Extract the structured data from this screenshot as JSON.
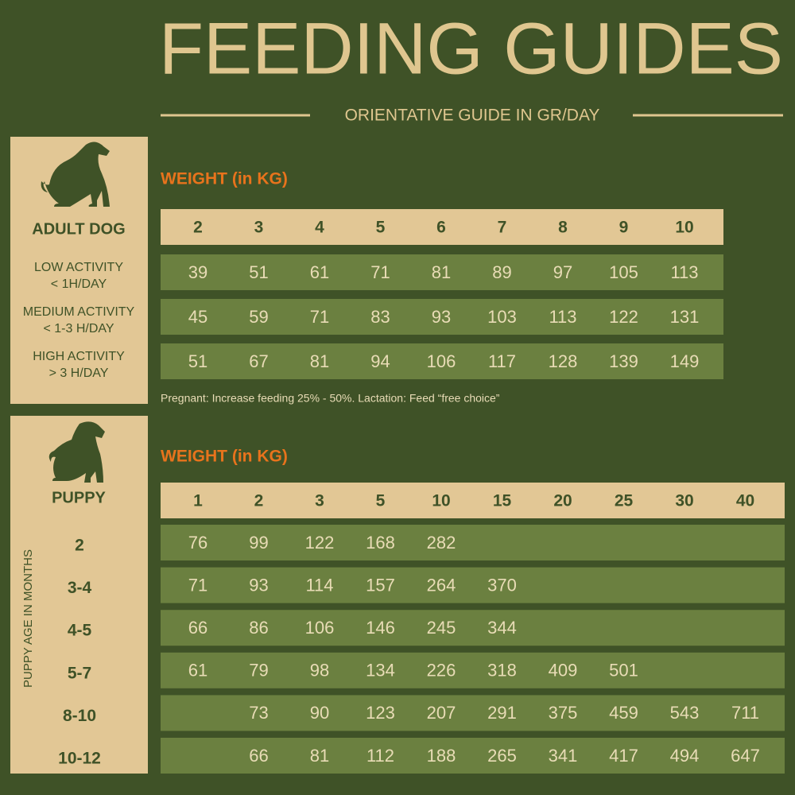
{
  "header": {
    "title": "FEEDING GUIDES",
    "subtitle": "ORIENTATIVE GUIDE IN GR/DAY"
  },
  "adult": {
    "label": "ADULT DOG",
    "weight_heading": "WEIGHT (in KG)",
    "weights": [
      2,
      3,
      4,
      5,
      6,
      7,
      8,
      9,
      10
    ],
    "rows": [
      {
        "label": [
          "LOW ACTIVITY",
          "< 1H/DAY"
        ],
        "values": [
          39,
          51,
          61,
          71,
          81,
          89,
          97,
          105,
          113
        ]
      },
      {
        "label": [
          "MEDIUM ACTIVITY",
          "< 1-3 H/DAY"
        ],
        "values": [
          45,
          59,
          71,
          83,
          93,
          103,
          113,
          122,
          131
        ]
      },
      {
        "label": [
          "HIGH ACTIVITY",
          "> 3 H/DAY"
        ],
        "values": [
          51,
          67,
          81,
          94,
          106,
          117,
          128,
          139,
          149
        ]
      }
    ],
    "note": "Pregnant: Increase feeding 25% - 50%. Lactation: Feed “free choice”"
  },
  "puppy": {
    "label": "PUPPY",
    "weight_heading": "WEIGHT (in KG)",
    "age_axis": "PUPPY AGE IN MONTHS",
    "weights": [
      1,
      2,
      3,
      5,
      10,
      15,
      20,
      25,
      30,
      40
    ],
    "rows": [
      {
        "label": "2",
        "values": [
          76,
          99,
          122,
          168,
          282,
          null,
          null,
          null,
          null,
          null
        ]
      },
      {
        "label": "3-4",
        "values": [
          71,
          93,
          114,
          157,
          264,
          370,
          null,
          null,
          null,
          null
        ]
      },
      {
        "label": "4-5",
        "values": [
          66,
          86,
          106,
          146,
          245,
          344,
          null,
          null,
          null,
          null
        ]
      },
      {
        "label": "5-7",
        "values": [
          61,
          79,
          98,
          134,
          226,
          318,
          409,
          501,
          null,
          null
        ]
      },
      {
        "label": "8-10",
        "values": [
          null,
          73,
          90,
          123,
          207,
          291,
          375,
          459,
          543,
          711
        ]
      },
      {
        "label": "10-12",
        "values": [
          null,
          66,
          81,
          112,
          188,
          265,
          341,
          417,
          494,
          647
        ]
      }
    ]
  }
}
